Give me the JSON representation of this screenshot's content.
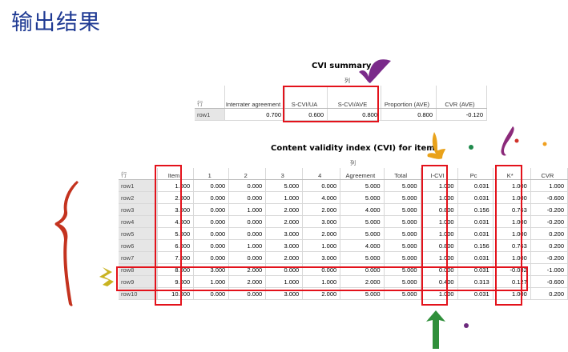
{
  "heading": "输出结果",
  "cvi_summary": {
    "title": "CVI summary",
    "col_group_label": "列",
    "row_header": "行",
    "columns": [
      "Interrater agreement",
      "S-CVI/UA",
      "S-CVI/AVE",
      "Proportion (AVE)",
      "CVR (AVE)"
    ],
    "rows": [
      {
        "label": "row1",
        "values": [
          "0.700",
          "0.600",
          "0.800",
          "0.800",
          "-0.120"
        ]
      }
    ]
  },
  "cvi_item": {
    "title": "Content validity index (CVI) for item",
    "col_group_label": "列",
    "row_header": "行",
    "columns": [
      "Item",
      "1",
      "2",
      "3",
      "4",
      "Agreement",
      "Total",
      "I-CVI",
      "Pc",
      "K*",
      "CVR"
    ],
    "rows": [
      {
        "label": "row1",
        "values": [
          "1.000",
          "0.000",
          "0.000",
          "5.000",
          "0.000",
          "5.000",
          "5.000",
          "1.000",
          "0.031",
          "1.000",
          "1.000"
        ]
      },
      {
        "label": "row2",
        "values": [
          "2.000",
          "0.000",
          "0.000",
          "1.000",
          "4.000",
          "5.000",
          "5.000",
          "1.000",
          "0.031",
          "1.000",
          "-0.600"
        ]
      },
      {
        "label": "row3",
        "values": [
          "3.000",
          "0.000",
          "1.000",
          "2.000",
          "2.000",
          "4.000",
          "5.000",
          "0.800",
          "0.156",
          "0.763",
          "-0.200"
        ]
      },
      {
        "label": "row4",
        "values": [
          "4.000",
          "0.000",
          "0.000",
          "2.000",
          "3.000",
          "5.000",
          "5.000",
          "1.000",
          "0.031",
          "1.000",
          "-0.200"
        ]
      },
      {
        "label": "row5",
        "values": [
          "5.000",
          "0.000",
          "0.000",
          "3.000",
          "2.000",
          "5.000",
          "5.000",
          "1.000",
          "0.031",
          "1.000",
          "0.200"
        ]
      },
      {
        "label": "row6",
        "values": [
          "6.000",
          "0.000",
          "1.000",
          "3.000",
          "1.000",
          "4.000",
          "5.000",
          "0.800",
          "0.156",
          "0.763",
          "0.200"
        ]
      },
      {
        "label": "row7",
        "values": [
          "7.000",
          "0.000",
          "0.000",
          "2.000",
          "3.000",
          "5.000",
          "5.000",
          "1.000",
          "0.031",
          "1.000",
          "-0.200"
        ]
      },
      {
        "label": "row8",
        "values": [
          "8.000",
          "3.000",
          "2.000",
          "0.000",
          "0.000",
          "0.000",
          "5.000",
          "0.000",
          "0.031",
          "-0.032",
          "-1.000"
        ]
      },
      {
        "label": "row9",
        "values": [
          "9.000",
          "1.000",
          "2.000",
          "1.000",
          "1.000",
          "2.000",
          "5.000",
          "0.400",
          "0.313",
          "0.127",
          "-0.600"
        ]
      },
      {
        "label": "row10",
        "values": [
          "10.000",
          "0.000",
          "0.000",
          "3.000",
          "2.000",
          "5.000",
          "5.000",
          "1.000",
          "0.031",
          "1.000",
          "0.200"
        ]
      }
    ]
  },
  "colors": {
    "title": "#1f3a93",
    "highlight": "#e3121b"
  }
}
